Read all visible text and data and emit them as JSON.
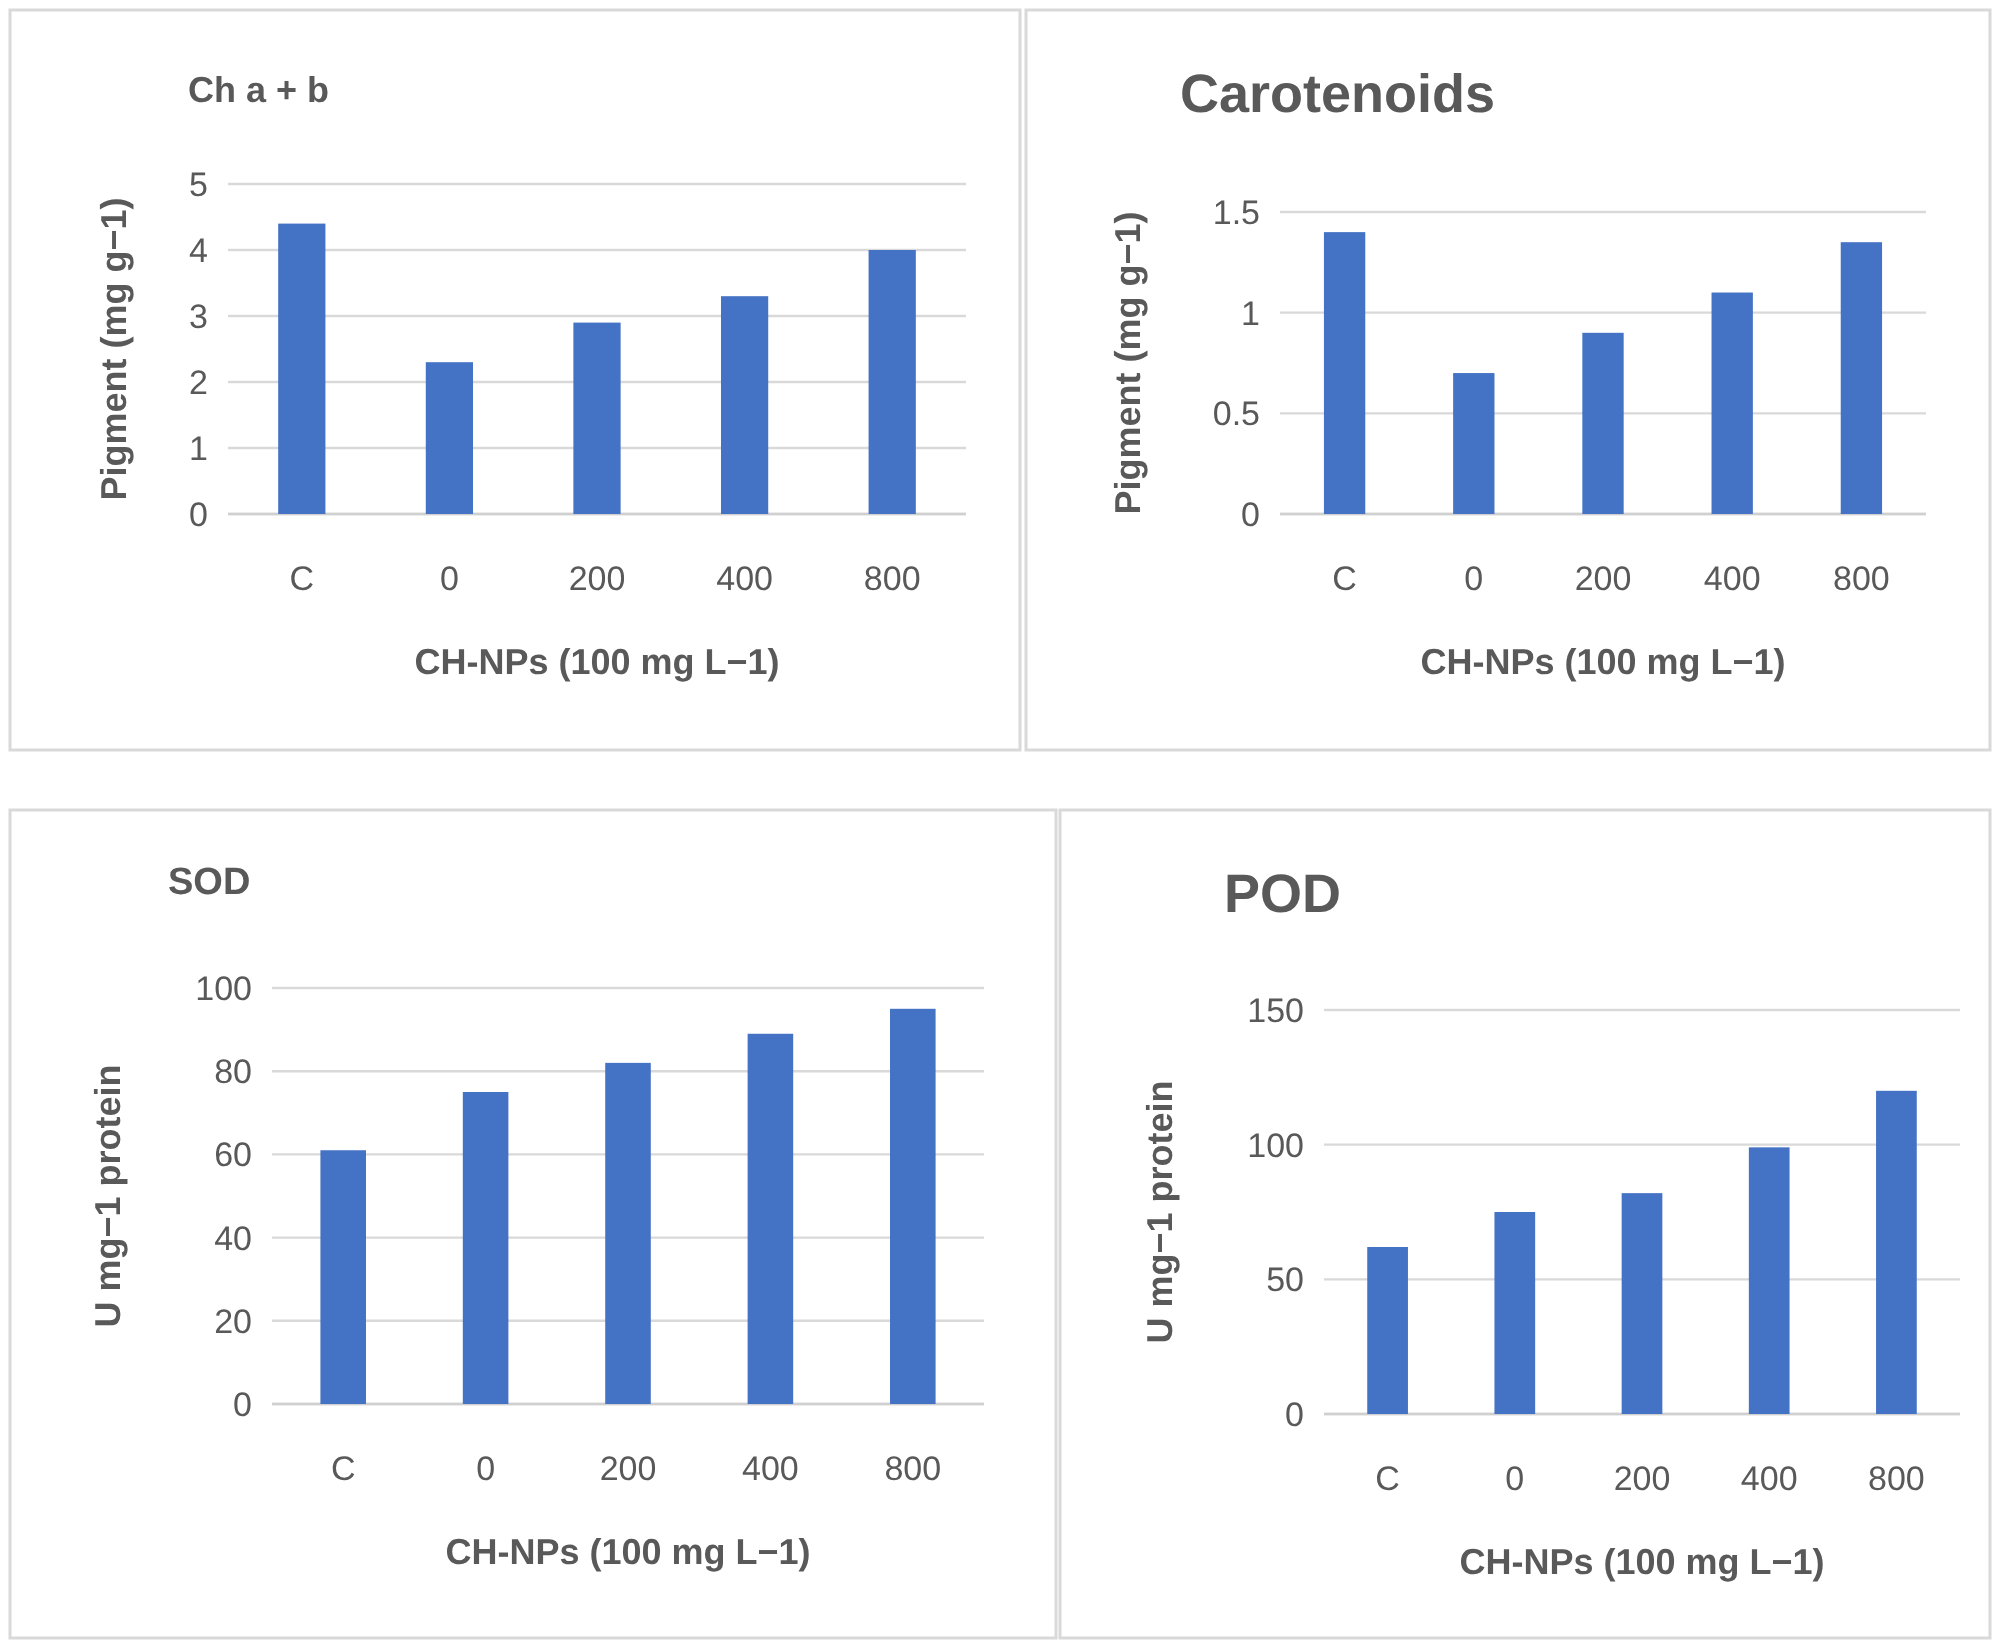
{
  "chart_data": [
    {
      "type": "bar",
      "title": "Ch a + b",
      "xlabel": "CH-NPs (100 mg L−1)",
      "ylabel": "Pigment (mg g−1)",
      "categories": [
        "C",
        "0",
        "200",
        "400",
        "800"
      ],
      "values": [
        4.4,
        2.3,
        2.9,
        3.3,
        4.0
      ],
      "color": "#4472c4",
      "ylim": [
        0,
        5
      ],
      "yticks": [
        0,
        1,
        2,
        3,
        4,
        5
      ],
      "grid": "y"
    },
    {
      "type": "bar",
      "title": "Carotenoids",
      "xlabel": "CH-NPs (100 mg L−1)",
      "ylabel": "Pigment (mg g−1)",
      "categories": [
        "C",
        "0",
        "200",
        "400",
        "800"
      ],
      "values": [
        1.4,
        0.7,
        0.9,
        1.1,
        1.35
      ],
      "color": "#4472c4",
      "ylim": [
        0,
        1.5
      ],
      "yticks": [
        0,
        0.5,
        1,
        1.5
      ],
      "grid": "y"
    },
    {
      "type": "bar",
      "title": "SOD",
      "xlabel": "CH-NPs (100 mg L−1)",
      "ylabel": "U mg−1 protein",
      "categories": [
        "C",
        "0",
        "200",
        "400",
        "800"
      ],
      "values": [
        61,
        75,
        82,
        89,
        95
      ],
      "color": "#4472c4",
      "ylim": [
        0,
        100
      ],
      "yticks": [
        0,
        20,
        40,
        60,
        80,
        100
      ],
      "grid": "y"
    },
    {
      "type": "bar",
      "title": "POD",
      "xlabel": "CH-NPs (100 mg L−1)",
      "ylabel": "U mg−1 protein",
      "categories": [
        "C",
        "0",
        "200",
        "400",
        "800"
      ],
      "values": [
        62,
        75,
        82,
        99,
        120
      ],
      "color": "#4472c4",
      "ylim": [
        0,
        150
      ],
      "yticks": [
        0,
        50,
        100,
        150
      ],
      "grid": "y"
    }
  ]
}
